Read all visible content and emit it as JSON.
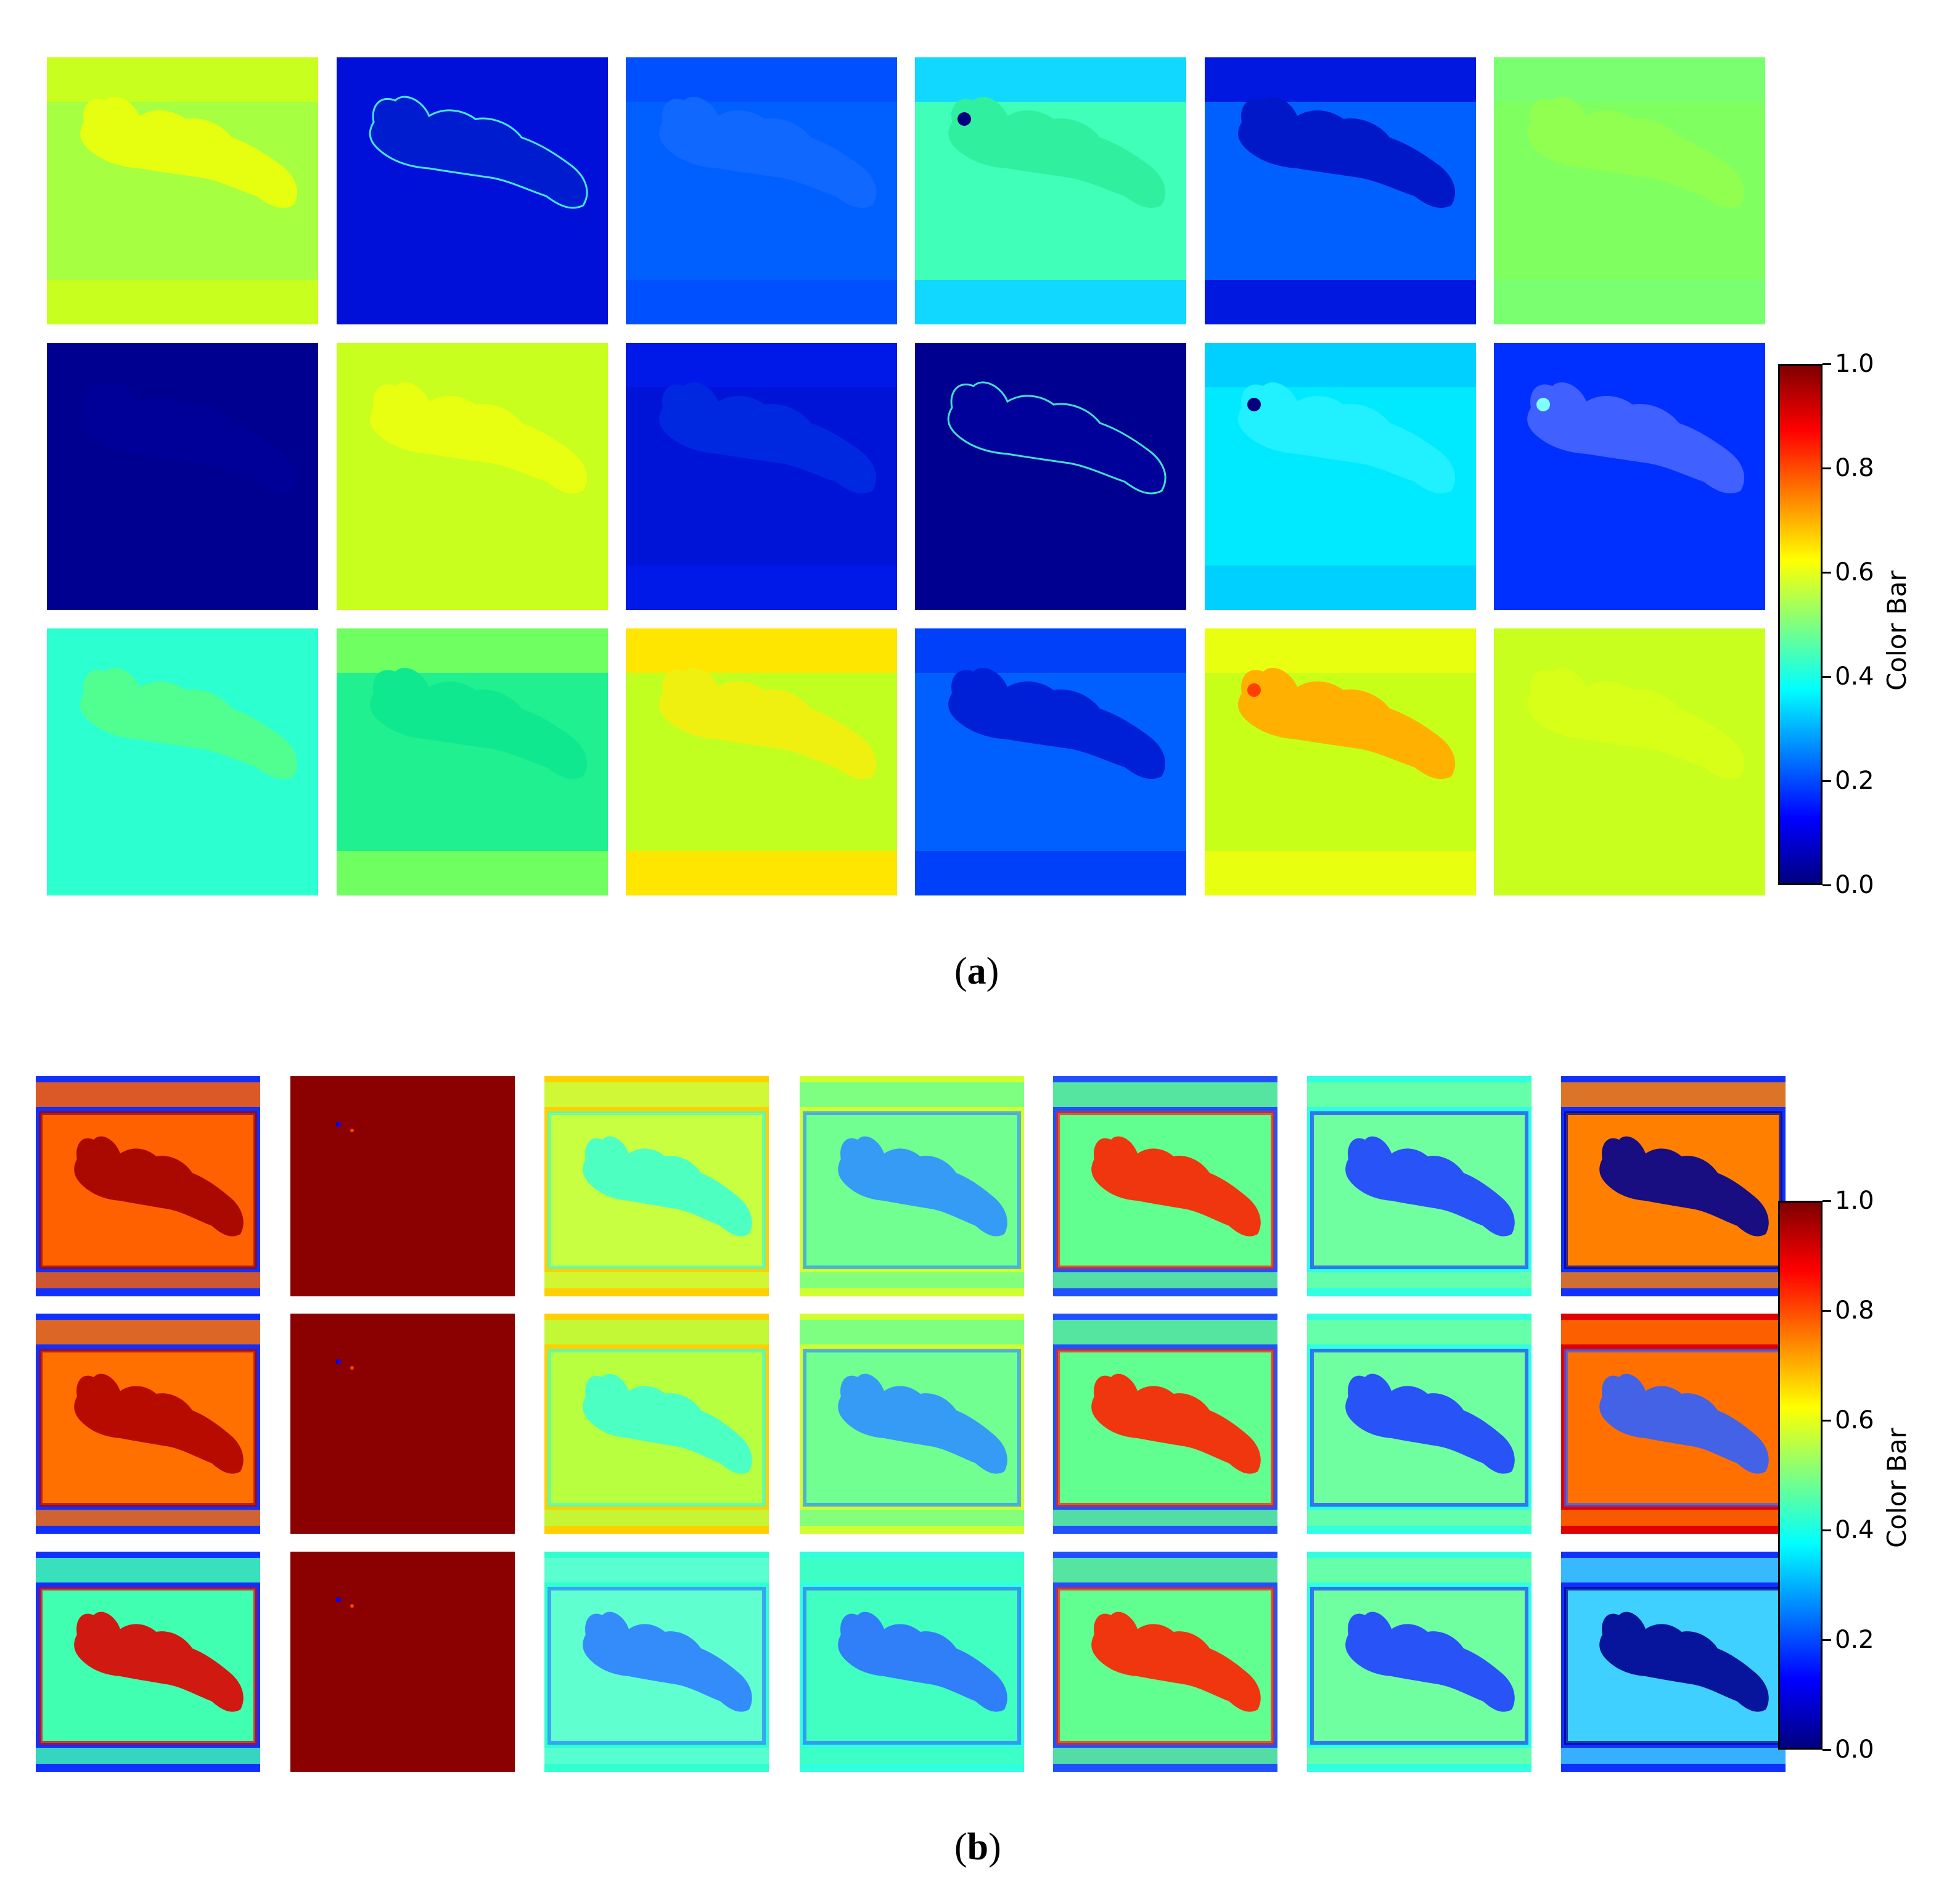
{
  "panel_a": {
    "caption": "a",
    "colorbar": {
      "label": "Color Bar",
      "ticks": [
        "0.0",
        "0.2",
        "0.4",
        "0.6",
        "0.8",
        "1.0"
      ]
    },
    "tiles": [
      {
        "bg": "#c8ff1e",
        "band": "#a6ff40",
        "shape": "#e6ff10"
      },
      {
        "bg": "#0010d8",
        "band": "#0010d8",
        "shape": "#001ccf",
        "edge": "#46e6ff"
      },
      {
        "bg": "#0050ff",
        "band": "#0060ff",
        "shape": "#1068ff"
      },
      {
        "bg": "#10d8ff",
        "band": "#40ffb8",
        "shape": "#30f0a0",
        "spot": "#00007f"
      },
      {
        "bg": "#0018e0",
        "band": "#0060ff",
        "shape": "#0018c8"
      },
      {
        "bg": "#7aff70",
        "band": "#80ff60",
        "shape": "#90ff50"
      },
      {
        "bg": "#000090",
        "band": "#000090",
        "shape": "#000098"
      },
      {
        "bg": "#c8ff1e",
        "band": "#c8ff1e",
        "shape": "#e8ff12"
      },
      {
        "bg": "#0018e8",
        "band": "#0014d8",
        "shape": "#0028e0"
      },
      {
        "bg": "#000090",
        "band": "#000090",
        "shape": "#00009a",
        "edge": "#40e0d0"
      },
      {
        "bg": "#00d0ff",
        "band": "#00eaff",
        "shape": "#20f0ff",
        "spot": "#00007f"
      },
      {
        "bg": "#0030ff",
        "band": "#0030ff",
        "shape": "#4060ff",
        "spot": "#80ffff"
      },
      {
        "bg": "#2cffd0",
        "band": "#2cffd0",
        "shape": "#50ff90"
      },
      {
        "bg": "#70ff60",
        "band": "#20f090",
        "shape": "#10e890"
      },
      {
        "bg": "#ffe600",
        "band": "#c0ff20",
        "shape": "#f0f010"
      },
      {
        "bg": "#0040f8",
        "band": "#0060ff",
        "shape": "#0020d8"
      },
      {
        "bg": "#e8ff10",
        "band": "#c8ff18",
        "shape": "#ffb000",
        "spot": "#ff4000"
      },
      {
        "bg": "#c8ff1e",
        "band": "#c8ff1e",
        "shape": "#d8ff18"
      }
    ]
  },
  "panel_b": {
    "caption": "b",
    "colorbar": {
      "label": "Color Bar",
      "ticks": [
        "0.0",
        "0.2",
        "0.4",
        "0.6",
        "0.8",
        "1.0"
      ]
    },
    "tiles": [
      {
        "style": "rd",
        "inner": "#ff6000",
        "blob": "#a00000",
        "frame": "#1030ff"
      },
      {
        "style": "solid",
        "inner": "#8b0000"
      },
      {
        "style": "mid",
        "inner": "#c8ff40",
        "blob": "#40ffd0",
        "frame": "#ffd000"
      },
      {
        "style": "mid",
        "inner": "#70ff90",
        "blob": "#3090ff",
        "frame": "#d0ff30"
      },
      {
        "style": "mid",
        "inner": "#60ff90",
        "blob": "#ff2000",
        "frame": "#2050ff"
      },
      {
        "style": "mid",
        "inner": "#70ffa0",
        "blob": "#2040ff",
        "frame": "#30ffe0"
      },
      {
        "style": "rd",
        "inner": "#ff8000",
        "blob": "#000090",
        "frame": "#1030ff"
      },
      {
        "style": "rd",
        "inner": "#ff7000",
        "blob": "#b00000",
        "frame": "#1030ff"
      },
      {
        "style": "solid",
        "inner": "#8b0000"
      },
      {
        "style": "mid",
        "inner": "#b8ff40",
        "blob": "#40ffd0",
        "frame": "#ffd000"
      },
      {
        "style": "mid",
        "inner": "#70ff90",
        "blob": "#3090ff",
        "frame": "#d0ff30"
      },
      {
        "style": "mid",
        "inner": "#60ff90",
        "blob": "#ff2000",
        "frame": "#2050ff"
      },
      {
        "style": "mid",
        "inner": "#70ffa0",
        "blob": "#2040ff",
        "frame": "#30ffe0"
      },
      {
        "style": "rd",
        "inner": "#ff7000",
        "blob": "#3060ff",
        "frame": "#e00000"
      },
      {
        "style": "rd",
        "inner": "#40ffb0",
        "blob": "#e00000",
        "frame": "#1030ff"
      },
      {
        "style": "solid",
        "inner": "#8b0000"
      },
      {
        "style": "mid",
        "inner": "#60ffd0",
        "blob": "#3080ff",
        "frame": "#30ffd0"
      },
      {
        "style": "mid",
        "inner": "#40ffc0",
        "blob": "#3070ff",
        "frame": "#30ffe0"
      },
      {
        "style": "mid",
        "inner": "#60ff90",
        "blob": "#ff2000",
        "frame": "#2050ff"
      },
      {
        "style": "mid",
        "inner": "#70ffa0",
        "blob": "#2040ff",
        "frame": "#30ffe0"
      },
      {
        "style": "rd",
        "inner": "#40d0ff",
        "blob": "#000090",
        "frame": "#1030ff"
      }
    ]
  }
}
